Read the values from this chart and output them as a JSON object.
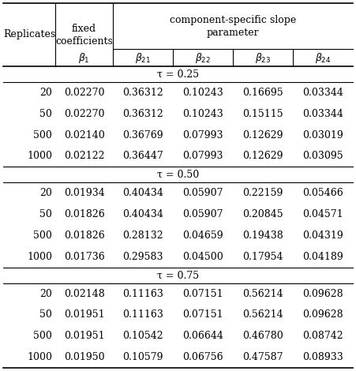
{
  "sections": [
    {
      "tau_label": "τ = 0.25",
      "rows": [
        [
          "20",
          "0.02270",
          "0.36312",
          "0.10243",
          "0.16695",
          "0.03344"
        ],
        [
          "50",
          "0.02270",
          "0.36312",
          "0.10243",
          "0.15115",
          "0.03344"
        ],
        [
          "500",
          "0.02140",
          "0.36769",
          "0.07993",
          "0.12629",
          "0.03019"
        ],
        [
          "1000",
          "0.02122",
          "0.36447",
          "0.07993",
          "0.12629",
          "0.03095"
        ]
      ]
    },
    {
      "tau_label": "τ = 0.50",
      "rows": [
        [
          "20",
          "0.01934",
          "0.40434",
          "0.05907",
          "0.22159",
          "0.05466"
        ],
        [
          "50",
          "0.01826",
          "0.40434",
          "0.05907",
          "0.20845",
          "0.04571"
        ],
        [
          "500",
          "0.01826",
          "0.28132",
          "0.04659",
          "0.19438",
          "0.04319"
        ],
        [
          "1000",
          "0.01736",
          "0.29583",
          "0.04500",
          "0.17954",
          "0.04189"
        ]
      ]
    },
    {
      "tau_label": "τ = 0.75",
      "rows": [
        [
          "20",
          "0.02148",
          "0.11163",
          "0.07151",
          "0.56214",
          "0.09628"
        ],
        [
          "50",
          "0.01951",
          "0.11163",
          "0.07151",
          "0.56214",
          "0.09628"
        ],
        [
          "500",
          "0.01951",
          "0.10542",
          "0.06644",
          "0.46780",
          "0.08742"
        ],
        [
          "1000",
          "0.01950",
          "0.10579",
          "0.06756",
          "0.47587",
          "0.08933"
        ]
      ]
    }
  ],
  "background_color": "#ffffff",
  "font_size": 9.0,
  "header_font_size": 9.0
}
